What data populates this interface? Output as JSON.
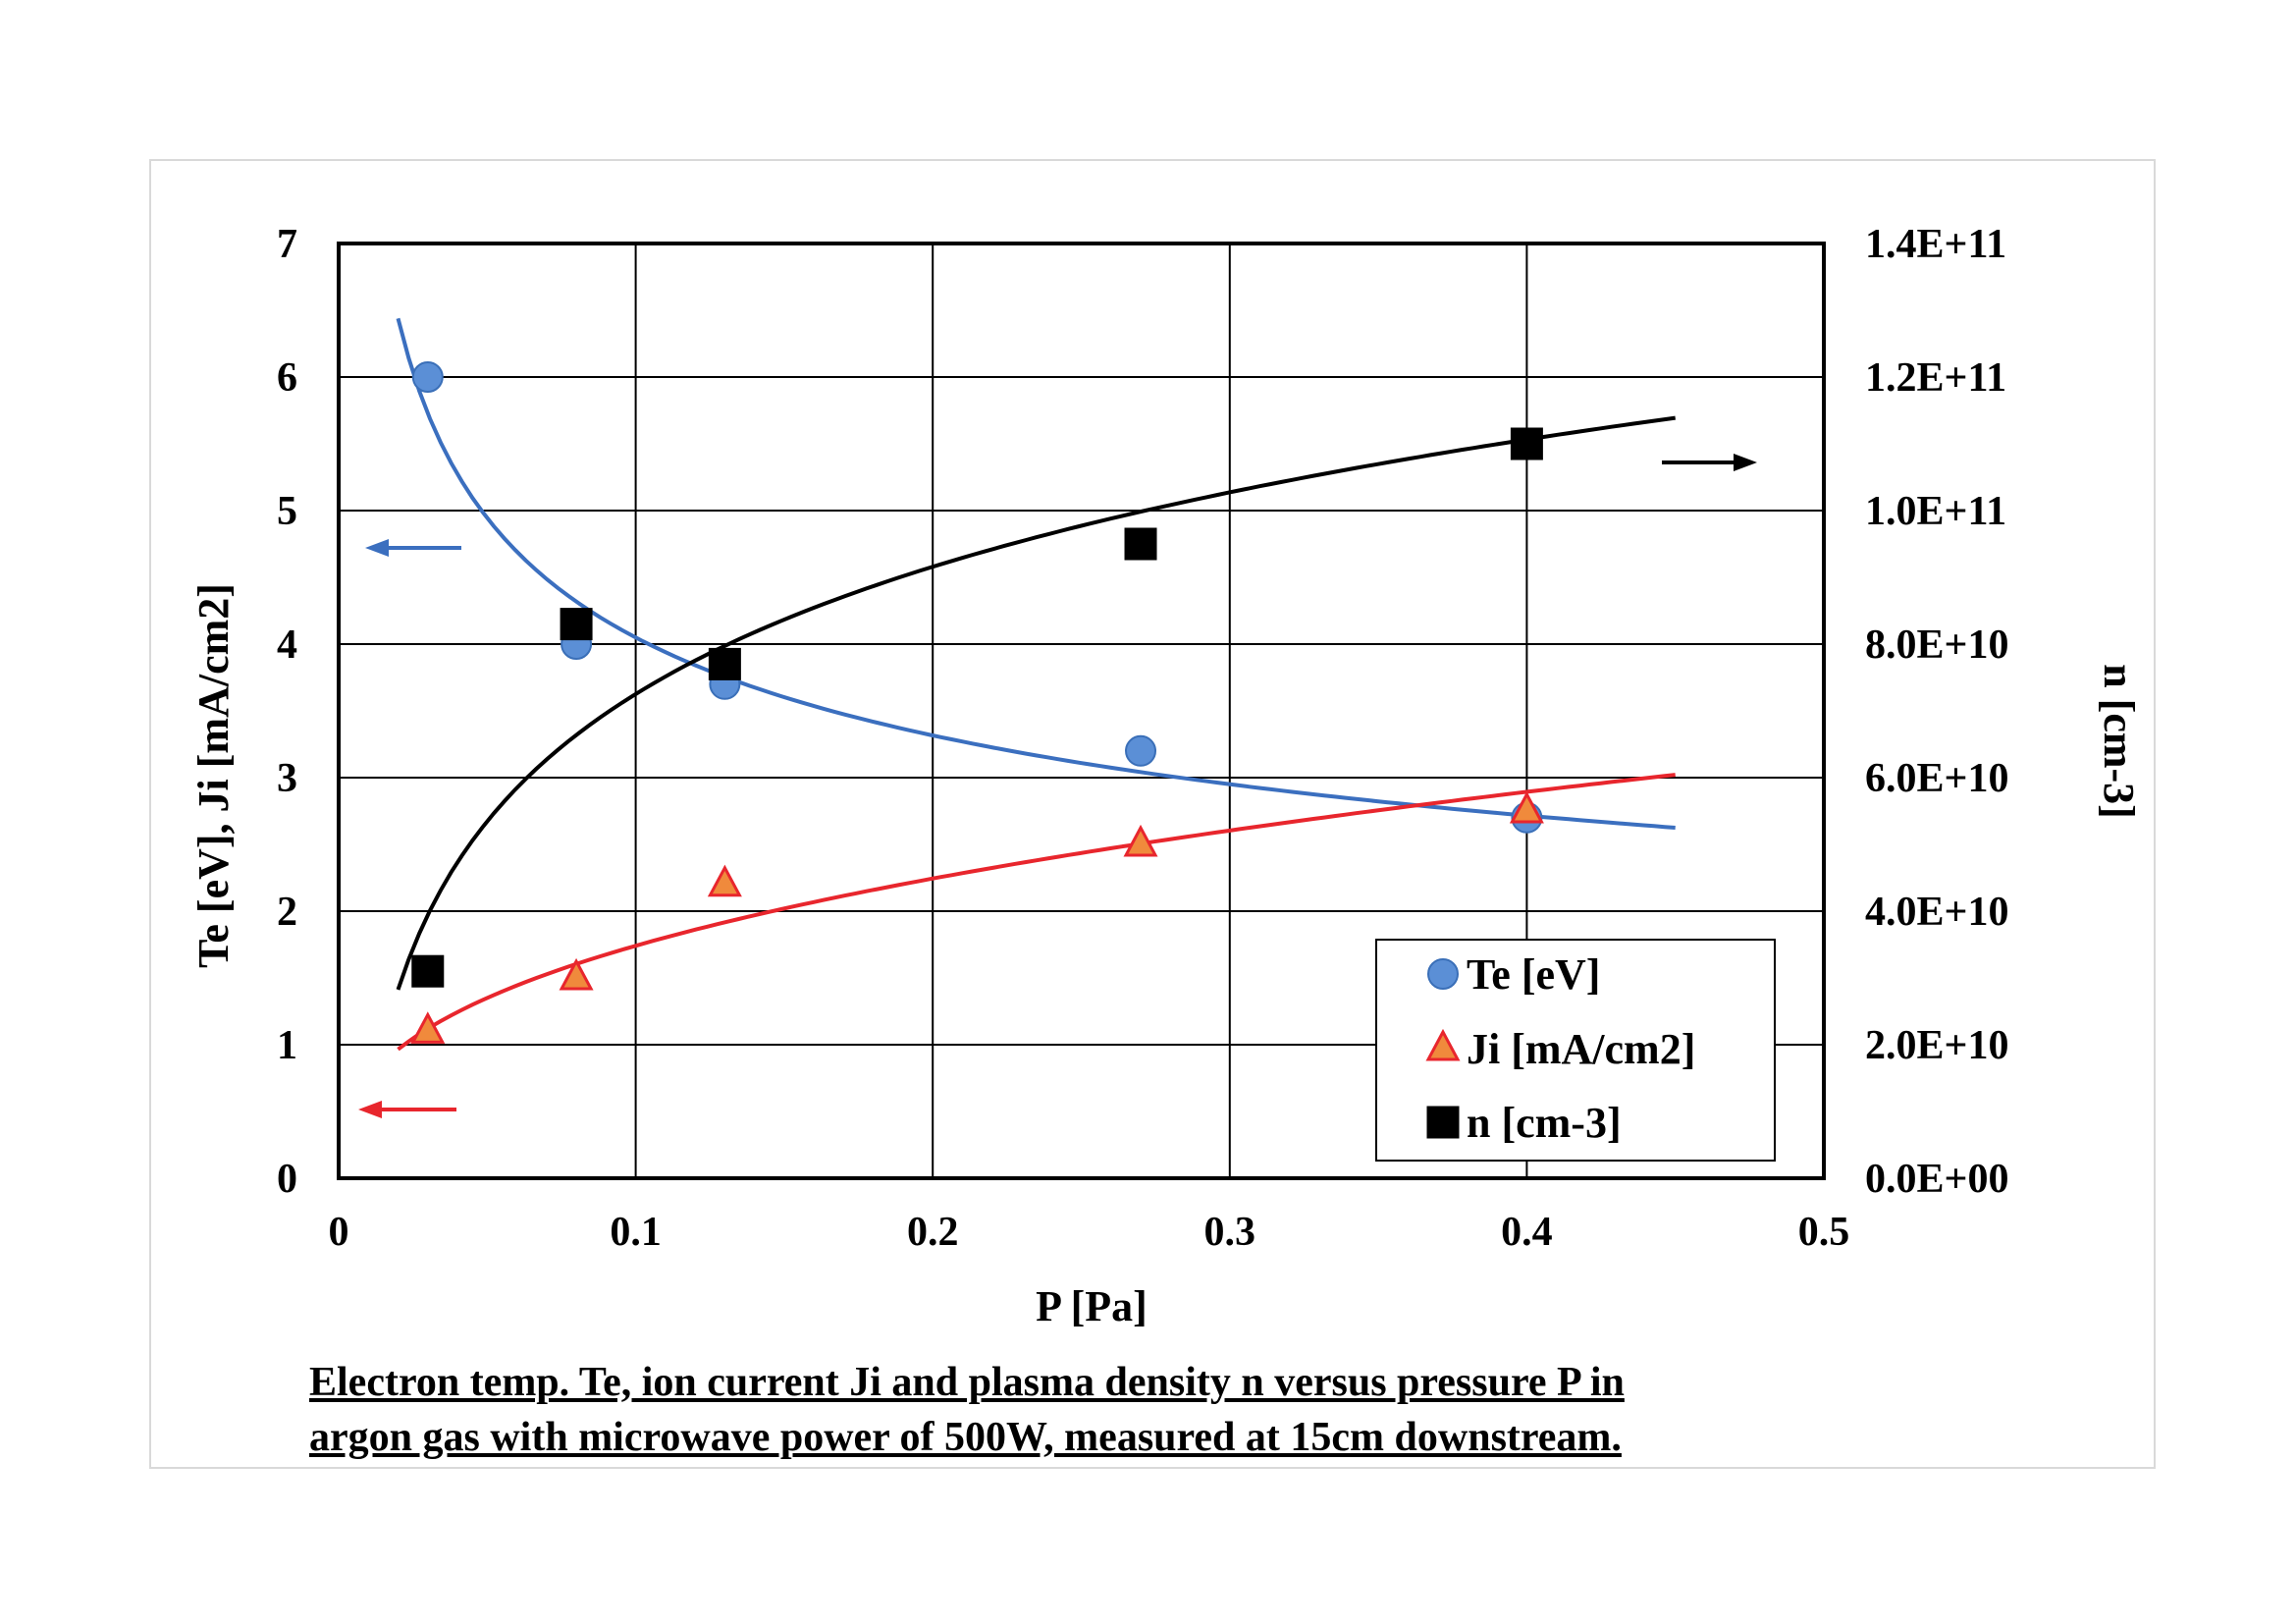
{
  "chart_data": {
    "type": "scatter",
    "xlabel": "P  [Pa]",
    "ylabel_left": "Te [eV],  Ji [mA/cm2]",
    "ylabel_right": "n [cm-3]",
    "xlim": [
      0,
      0.5
    ],
    "ylim_left": [
      0,
      7
    ],
    "ylim_right": [
      0,
      140000000000
    ],
    "x_ticks": [
      0,
      0.1,
      0.2,
      0.3,
      0.4,
      0.5
    ],
    "x_tick_labels": [
      "0",
      "0.1",
      "0.2",
      "0.3",
      "0.4",
      "0.5"
    ],
    "y_left_ticks": [
      0,
      1,
      2,
      3,
      4,
      5,
      6,
      7
    ],
    "y_left_tick_labels": [
      "0",
      "1",
      "2",
      "3",
      "4",
      "5",
      "6",
      "7"
    ],
    "y_right_ticks": [
      0,
      20000000000,
      40000000000,
      60000000000,
      80000000000,
      100000000000,
      120000000000,
      140000000000
    ],
    "y_right_tick_labels": [
      "0.0E+00",
      "2.0E+10",
      "4.0E+10",
      "6.0E+10",
      "8.0E+10",
      "1.0E+11",
      "1.2E+11",
      "1.4E+11"
    ],
    "grid": true,
    "legend_position": "bottom-right",
    "series": [
      {
        "name": "Te [eV]",
        "axis": "left",
        "marker": "circle",
        "color": "#5b8fd6",
        "edge_color": "#3a6fb8",
        "x": [
          0.03,
          0.08,
          0.13,
          0.27,
          0.4
        ],
        "y": [
          6.0,
          4.0,
          3.7,
          3.2,
          2.7
        ],
        "trendline": {
          "type": "power",
          "color": "#3b6fbf",
          "x_range": [
            0.02,
            0.45
          ]
        }
      },
      {
        "name": "Ji [mA/cm2]",
        "axis": "left",
        "marker": "triangle",
        "color": "#f08a3c",
        "edge_color": "#e8262d",
        "x": [
          0.03,
          0.08,
          0.13,
          0.27,
          0.4
        ],
        "y": [
          1.1,
          1.5,
          2.2,
          2.5,
          2.75
        ],
        "trendline": {
          "type": "power",
          "color": "#e8262d",
          "x_range": [
            0.02,
            0.45
          ]
        }
      },
      {
        "name": "n [cm-3]",
        "axis": "right",
        "marker": "square",
        "color": "#000000",
        "edge_color": "#000000",
        "x": [
          0.03,
          0.08,
          0.13,
          0.27,
          0.4
        ],
        "y": [
          31000000000,
          83000000000,
          77000000000,
          95000000000,
          110000000000
        ],
        "trendline": {
          "type": "log",
          "color": "#000000",
          "x_range": [
            0.02,
            0.45
          ]
        }
      }
    ],
    "annotations": [
      {
        "type": "arrow",
        "direction": "left",
        "color": "#3b6fbf",
        "meaning": "Te uses left axis"
      },
      {
        "type": "arrow",
        "direction": "left",
        "color": "#e8262d",
        "meaning": "Ji uses left axis"
      },
      {
        "type": "arrow",
        "direction": "right",
        "color": "#000000",
        "meaning": "n uses right axis"
      }
    ]
  },
  "caption": {
    "line1": "Electron temp. Te, ion current Ji and plasma density n versus pressure P in",
    "line2": "argon gas with microwave power of 500W, measured at 15cm downstream."
  }
}
